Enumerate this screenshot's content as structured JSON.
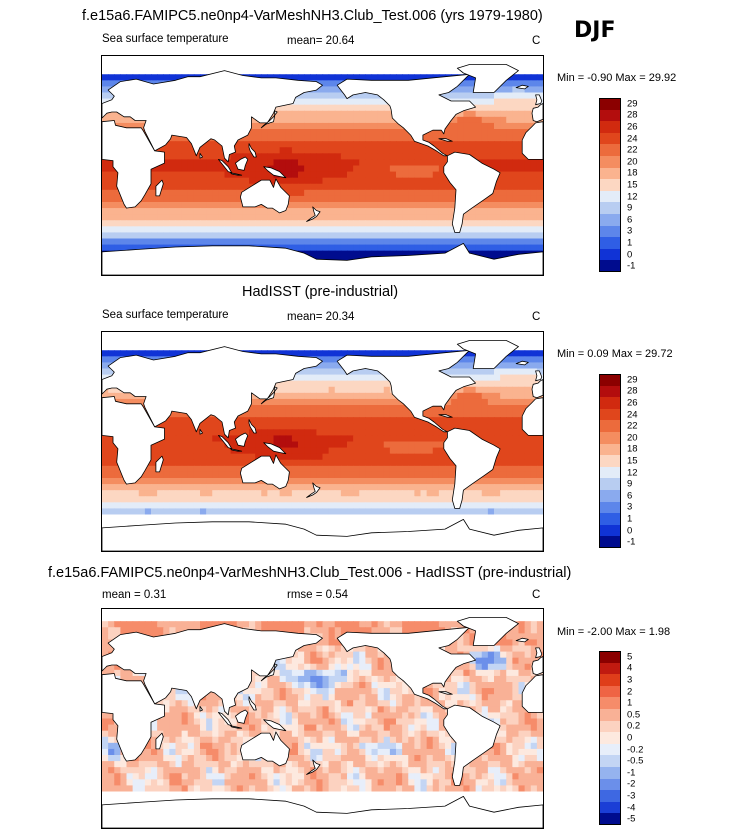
{
  "season_label": "DJF",
  "chart_data": [
    {
      "type": "heatmap",
      "title": "f.e15a6.FAMIPC5.ne0np4-VarMeshNH3.Club_Test.006 (yrs 1979-1980)",
      "left_label": "Sea surface temperature",
      "stat_text": "mean=  20.64",
      "units": "C",
      "min_max_text": "Min =  -0.90 Max =  29.92",
      "colorbar": {
        "levels": [
          "29",
          "28",
          "26",
          "24",
          "22",
          "20",
          "18",
          "15",
          "12",
          "9",
          "6",
          "3",
          "1",
          "0",
          "-1"
        ],
        "colors": [
          "#8b0000",
          "#b30d0d",
          "#d12a0f",
          "#e0461c",
          "#ec6b3c",
          "#f48d60",
          "#fab38f",
          "#fcd7c2",
          "#e3ecf8",
          "#b8cdf1",
          "#8aaaee",
          "#5d86ea",
          "#2f5ee5",
          "#1033d6",
          "#000c8e"
        ]
      },
      "field": "model"
    },
    {
      "type": "heatmap",
      "title": "HadISST (pre-industrial)",
      "left_label": "Sea surface temperature",
      "stat_text": "mean=  20.34",
      "units": "C",
      "min_max_text": "Min =  0.09 Max =  29.72",
      "colorbar": {
        "levels": [
          "29",
          "28",
          "26",
          "24",
          "22",
          "20",
          "18",
          "15",
          "12",
          "9",
          "6",
          "3",
          "1",
          "0",
          "-1"
        ],
        "colors": [
          "#8b0000",
          "#b30d0d",
          "#d12a0f",
          "#e0461c",
          "#ec6b3c",
          "#f48d60",
          "#fab38f",
          "#fcd7c2",
          "#e3ecf8",
          "#b8cdf1",
          "#8aaaee",
          "#5d86ea",
          "#2f5ee5",
          "#1033d6",
          "#000c8e"
        ]
      },
      "field": "obs"
    },
    {
      "type": "heatmap",
      "title": "f.e15a6.FAMIPC5.ne0np4-VarMeshNH3.Club_Test.006 - HadISST (pre-industrial)",
      "left_label": "mean =   0.31",
      "stat_text": "rmse =   0.54",
      "units": "C",
      "min_max_text": "Min =  -2.00 Max =   1.98",
      "colorbar": {
        "levels": [
          "5",
          "4",
          "3",
          "2",
          "1",
          "0.5",
          "0.2",
          "0",
          "-0.2",
          "-0.5",
          "-1",
          "-2",
          "-3",
          "-4",
          "-5"
        ],
        "colors": [
          "#8b0000",
          "#c01a10",
          "#df3d1a",
          "#ef6444",
          "#f68c6a",
          "#f9b196",
          "#fcd2c0",
          "#fde9df",
          "#e7eefa",
          "#c3d5f4",
          "#95b3ef",
          "#6b8fea",
          "#3e68e2",
          "#1b3ed6",
          "#000c8e"
        ]
      },
      "field": "diff"
    }
  ]
}
